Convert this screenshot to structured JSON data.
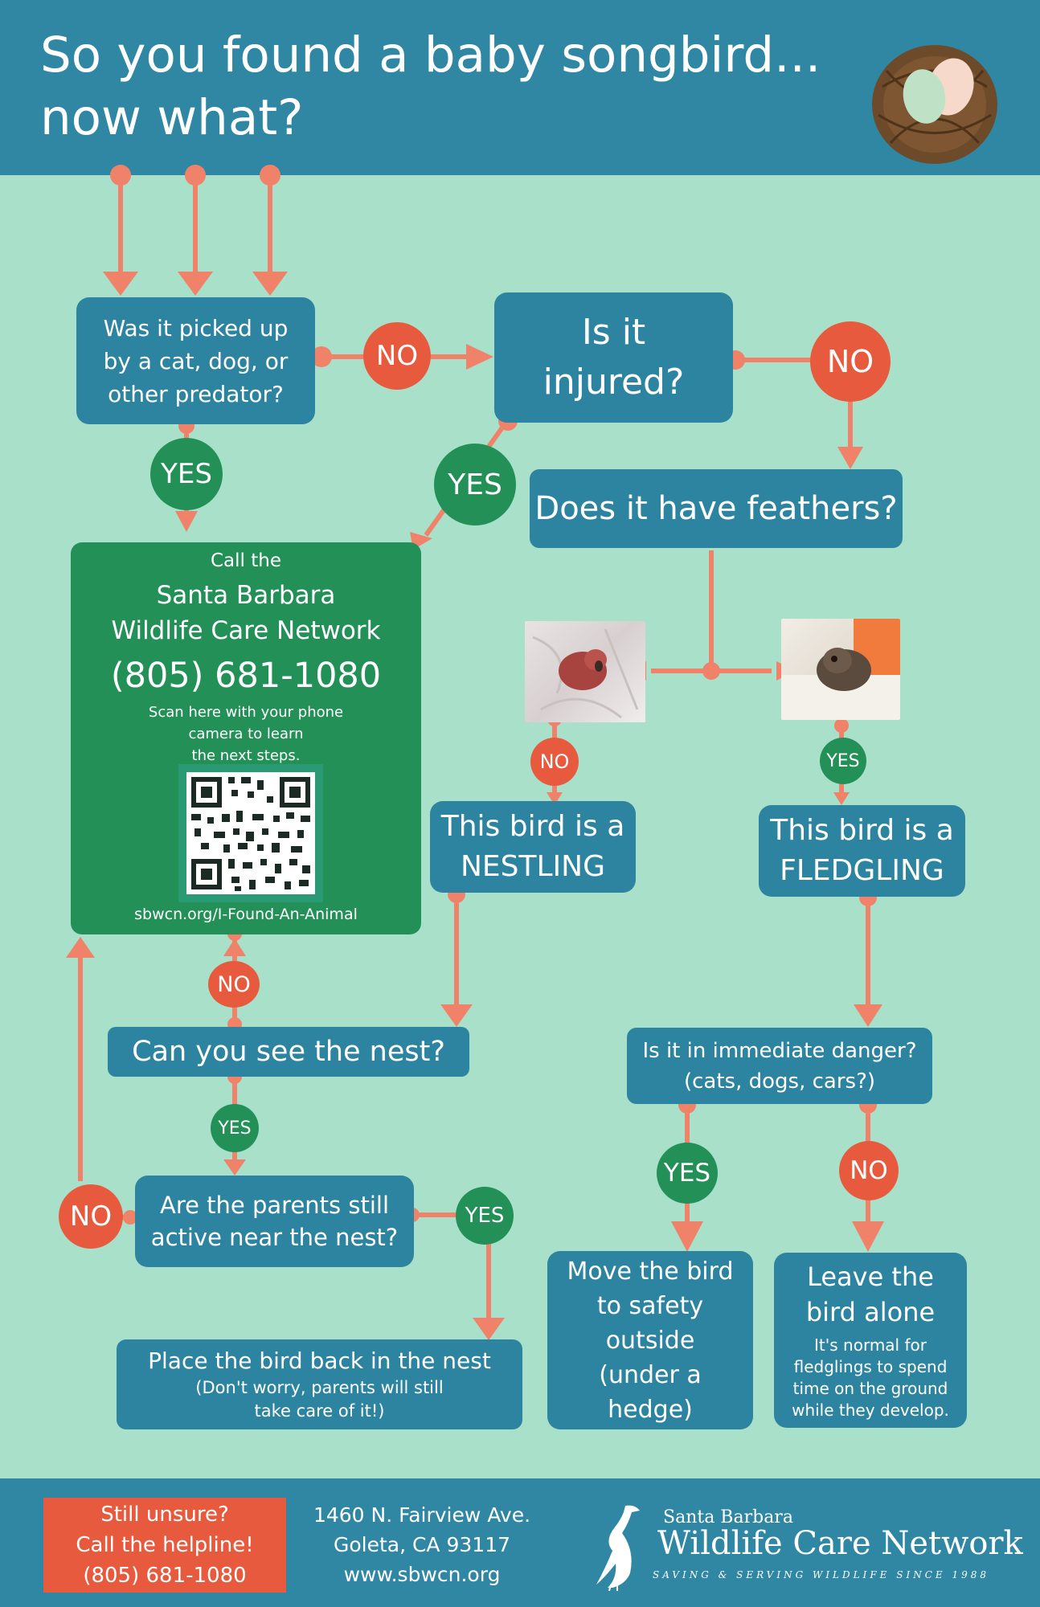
{
  "header": {
    "title_line1": "So you found a baby songbird...",
    "title_line2": "now what?",
    "nest_icon": "nest-with-eggs-icon"
  },
  "colors": {
    "background": "#a8e0c9",
    "header_bar": "#2f87a3",
    "box": "#2d84a0",
    "no": "#e85a3e",
    "yes": "#239057",
    "arrow": "#f0826a"
  },
  "nodes": {
    "predator_q": [
      "Was it picked up",
      "by a cat, dog, or",
      "other predator?"
    ],
    "injured_q": [
      "Is it",
      "injured?"
    ],
    "feathers_q": "Does it have feathers?",
    "call_box": {
      "pre": "Call the",
      "org_line1": "Santa Barbara",
      "org_line2": "Wildlife Care Network",
      "phone": "(805) 681-1080",
      "scan_line1": "Scan here with your phone",
      "scan_line2": "camera to learn",
      "scan_line3": "the next steps.",
      "url": "sbwcn.org/I-Found-An-Animal"
    },
    "nestling": [
      "This bird is a",
      "NESTLING"
    ],
    "fledgling": [
      "This bird is a",
      "FLEDGLING"
    ],
    "see_nest_q": "Can you see the nest?",
    "parents_q": [
      "Are the parents still",
      "active near the nest?"
    ],
    "place_back": {
      "title": "Place the bird back in the nest",
      "note_line1": "(Don't worry, parents will still",
      "note_line2": "take care of it!)"
    },
    "danger_q": [
      "Is it in immediate danger?",
      "(cats, dogs, cars?)"
    ],
    "move_safety": [
      "Move the bird",
      "to safety",
      "outside",
      "(under a",
      "hedge)"
    ],
    "leave_alone": {
      "title_line1": "Leave the",
      "title_line2": "bird alone",
      "note": [
        "It's normal for",
        "fledglings to spend",
        "time on the ground",
        "while they develop."
      ]
    }
  },
  "labels": {
    "no": "NO",
    "yes": "YES"
  },
  "footer": {
    "helpline": [
      "Still unsure?",
      "Call the helpline!",
      "(805) 681-1080"
    ],
    "address": [
      "1460 N. Fairview Ave.",
      "Goleta, CA 93117",
      "www.sbwcn.org"
    ],
    "logo_small": "Santa Barbara",
    "logo_big": "Wildlife Care Network",
    "logo_tag": "SAVING & SERVING WILDLIFE SINCE 1988"
  }
}
